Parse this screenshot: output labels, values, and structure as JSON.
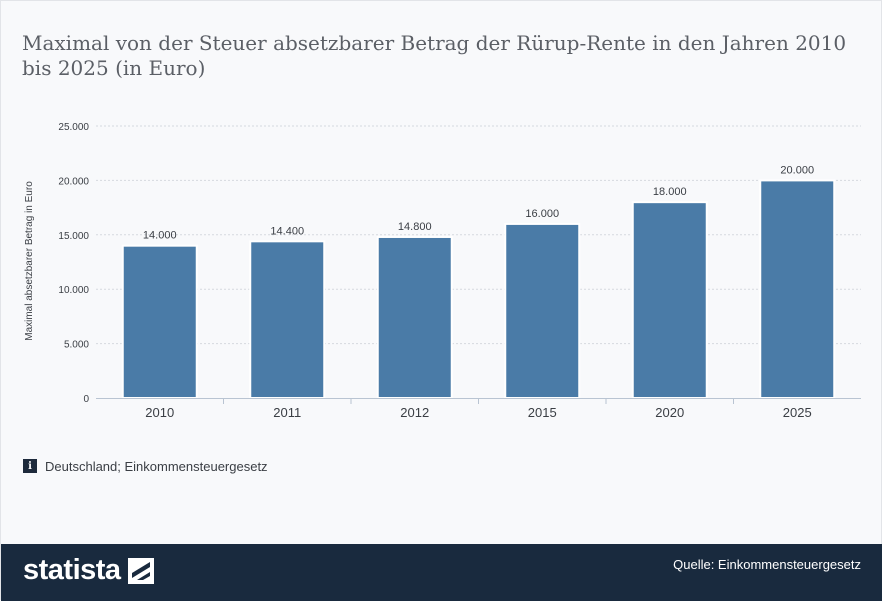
{
  "title": "Maximal von der Steuer absetzbarer Betrag der Rürup-Rente in den Jahren 2010 bis 2025 (in Euro)",
  "info_note": "Deutschland; Einkommensteuergesetz",
  "info_icon": "info-icon",
  "footer": {
    "logo": "statista",
    "source": "Quelle: Einkommensteuergesetz"
  },
  "colors": {
    "bar": "#4a7ba7",
    "footer": "#192a3e"
  },
  "chart_data": {
    "type": "bar",
    "categories": [
      "2010",
      "2011",
      "2012",
      "2015",
      "2020",
      "2025"
    ],
    "values": [
      14000,
      14400,
      14800,
      16000,
      18000,
      20000
    ],
    "value_labels": [
      "14.000",
      "14.400",
      "14.800",
      "16.000",
      "18.000",
      "20.000"
    ],
    "ylabel": "Maximal absetzbarer Betrag in Euro",
    "xlabel": "",
    "ylim": [
      0,
      25000
    ],
    "yticks": [
      0,
      5000,
      10000,
      15000,
      20000,
      25000
    ],
    "ytick_labels": [
      "0",
      "5.000",
      "10.000",
      "15.000",
      "20.000",
      "25.000"
    ],
    "grid": true,
    "legend": "none"
  }
}
